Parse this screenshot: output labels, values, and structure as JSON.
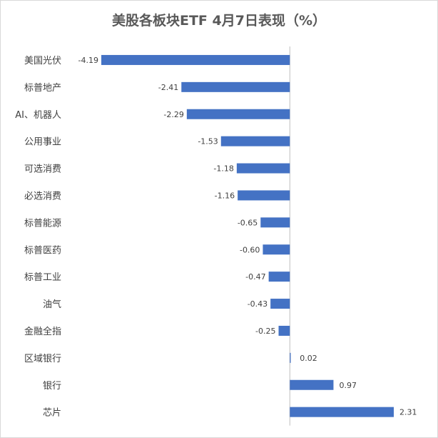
{
  "chart_data": {
    "type": "bar",
    "orientation": "horizontal",
    "title": "美股各板块ETF 4月7日表现（%）",
    "categories": [
      "美国光伏",
      "标普地产",
      "AI、机器人",
      "公用事业",
      "可选消费",
      "必选消费",
      "标普能源",
      "标普医药",
      "标普工业",
      "油气",
      "金融全指",
      "区域银行",
      "银行",
      "芯片"
    ],
    "values": [
      -4.19,
      -2.41,
      -2.29,
      -1.53,
      -1.18,
      -1.16,
      -0.65,
      -0.6,
      -0.47,
      -0.43,
      -0.25,
      0.02,
      0.97,
      2.31
    ],
    "value_labels": [
      "-4.19",
      "-2.41",
      "-2.29",
      "-1.53",
      "-1.18",
      "-1.16",
      "-0.65",
      "-0.60",
      "-0.47",
      "-0.43",
      "-0.25",
      "0.02",
      "0.97",
      "2.31"
    ],
    "xlabel": "",
    "ylabel": "",
    "xlim": [
      -4.19,
      2.31
    ],
    "grid": false,
    "legend": "none",
    "bar_color": "#4472c4"
  }
}
